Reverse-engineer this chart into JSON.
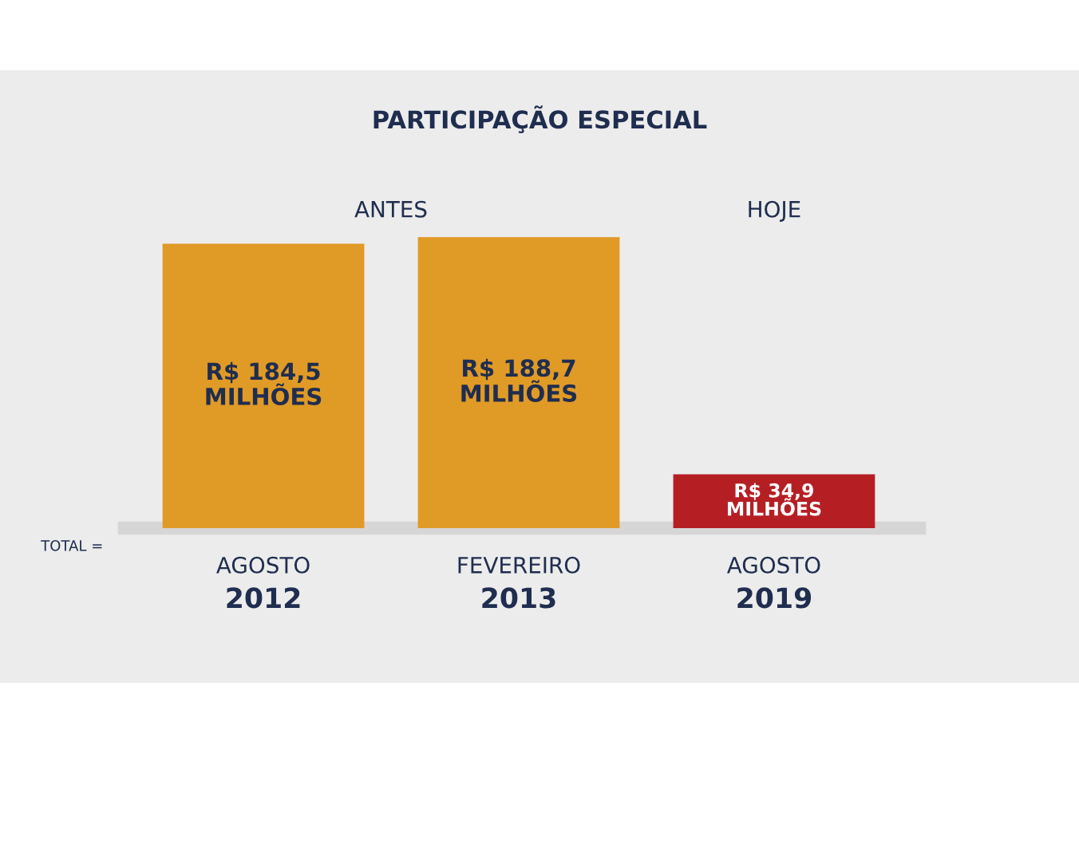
{
  "chart_data": {
    "type": "bar",
    "title": "PARTICIPAÇÃO ESPECIAL",
    "categories": [
      "AGOSTO\n2012",
      "FEVEREIRO\n2013",
      "AGOSTO\n2019"
    ],
    "values": [
      184.5,
      188.7,
      34.9
    ],
    "colors": [
      "#e09a26",
      "#e09a26",
      "#b51f24"
    ],
    "value_labels": [
      "R$ 184,5\nMILHÕES",
      "R$ 188,7\nMILHÕES",
      "R$ 34,9\nMILHÕES"
    ],
    "annotations": [
      "ANTES",
      "HOJE",
      "TOTAL ="
    ]
  }
}
